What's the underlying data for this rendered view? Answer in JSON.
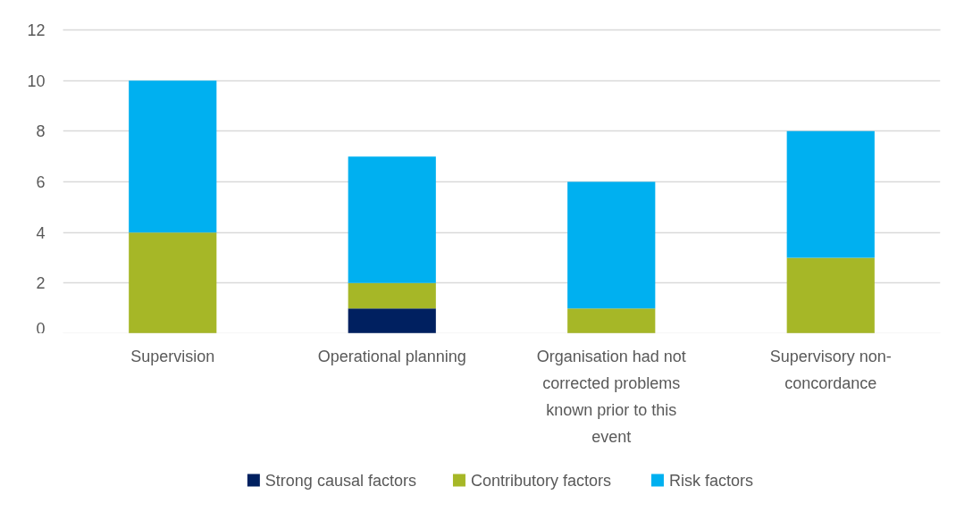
{
  "chart_data": {
    "type": "bar",
    "stacked": true,
    "categories": [
      "Supervision",
      "Operational planning",
      "Organisation had not corrected problems known prior to this event",
      "Supervisory non-concordance"
    ],
    "series": [
      {
        "name": "Strong causal factors",
        "color": "#002060",
        "values": [
          0,
          1,
          0,
          0
        ]
      },
      {
        "name": "Contributory factors",
        "color": "#a6b727",
        "values": [
          4,
          1,
          1,
          3
        ]
      },
      {
        "name": "Risk factors",
        "color": "#00b0f0",
        "values": [
          6,
          5,
          5,
          5
        ]
      }
    ],
    "ylim": [
      0,
      12
    ],
    "yticks": [
      0,
      2,
      4,
      6,
      8,
      10,
      12
    ],
    "grid": "y",
    "legend": "bottom"
  }
}
